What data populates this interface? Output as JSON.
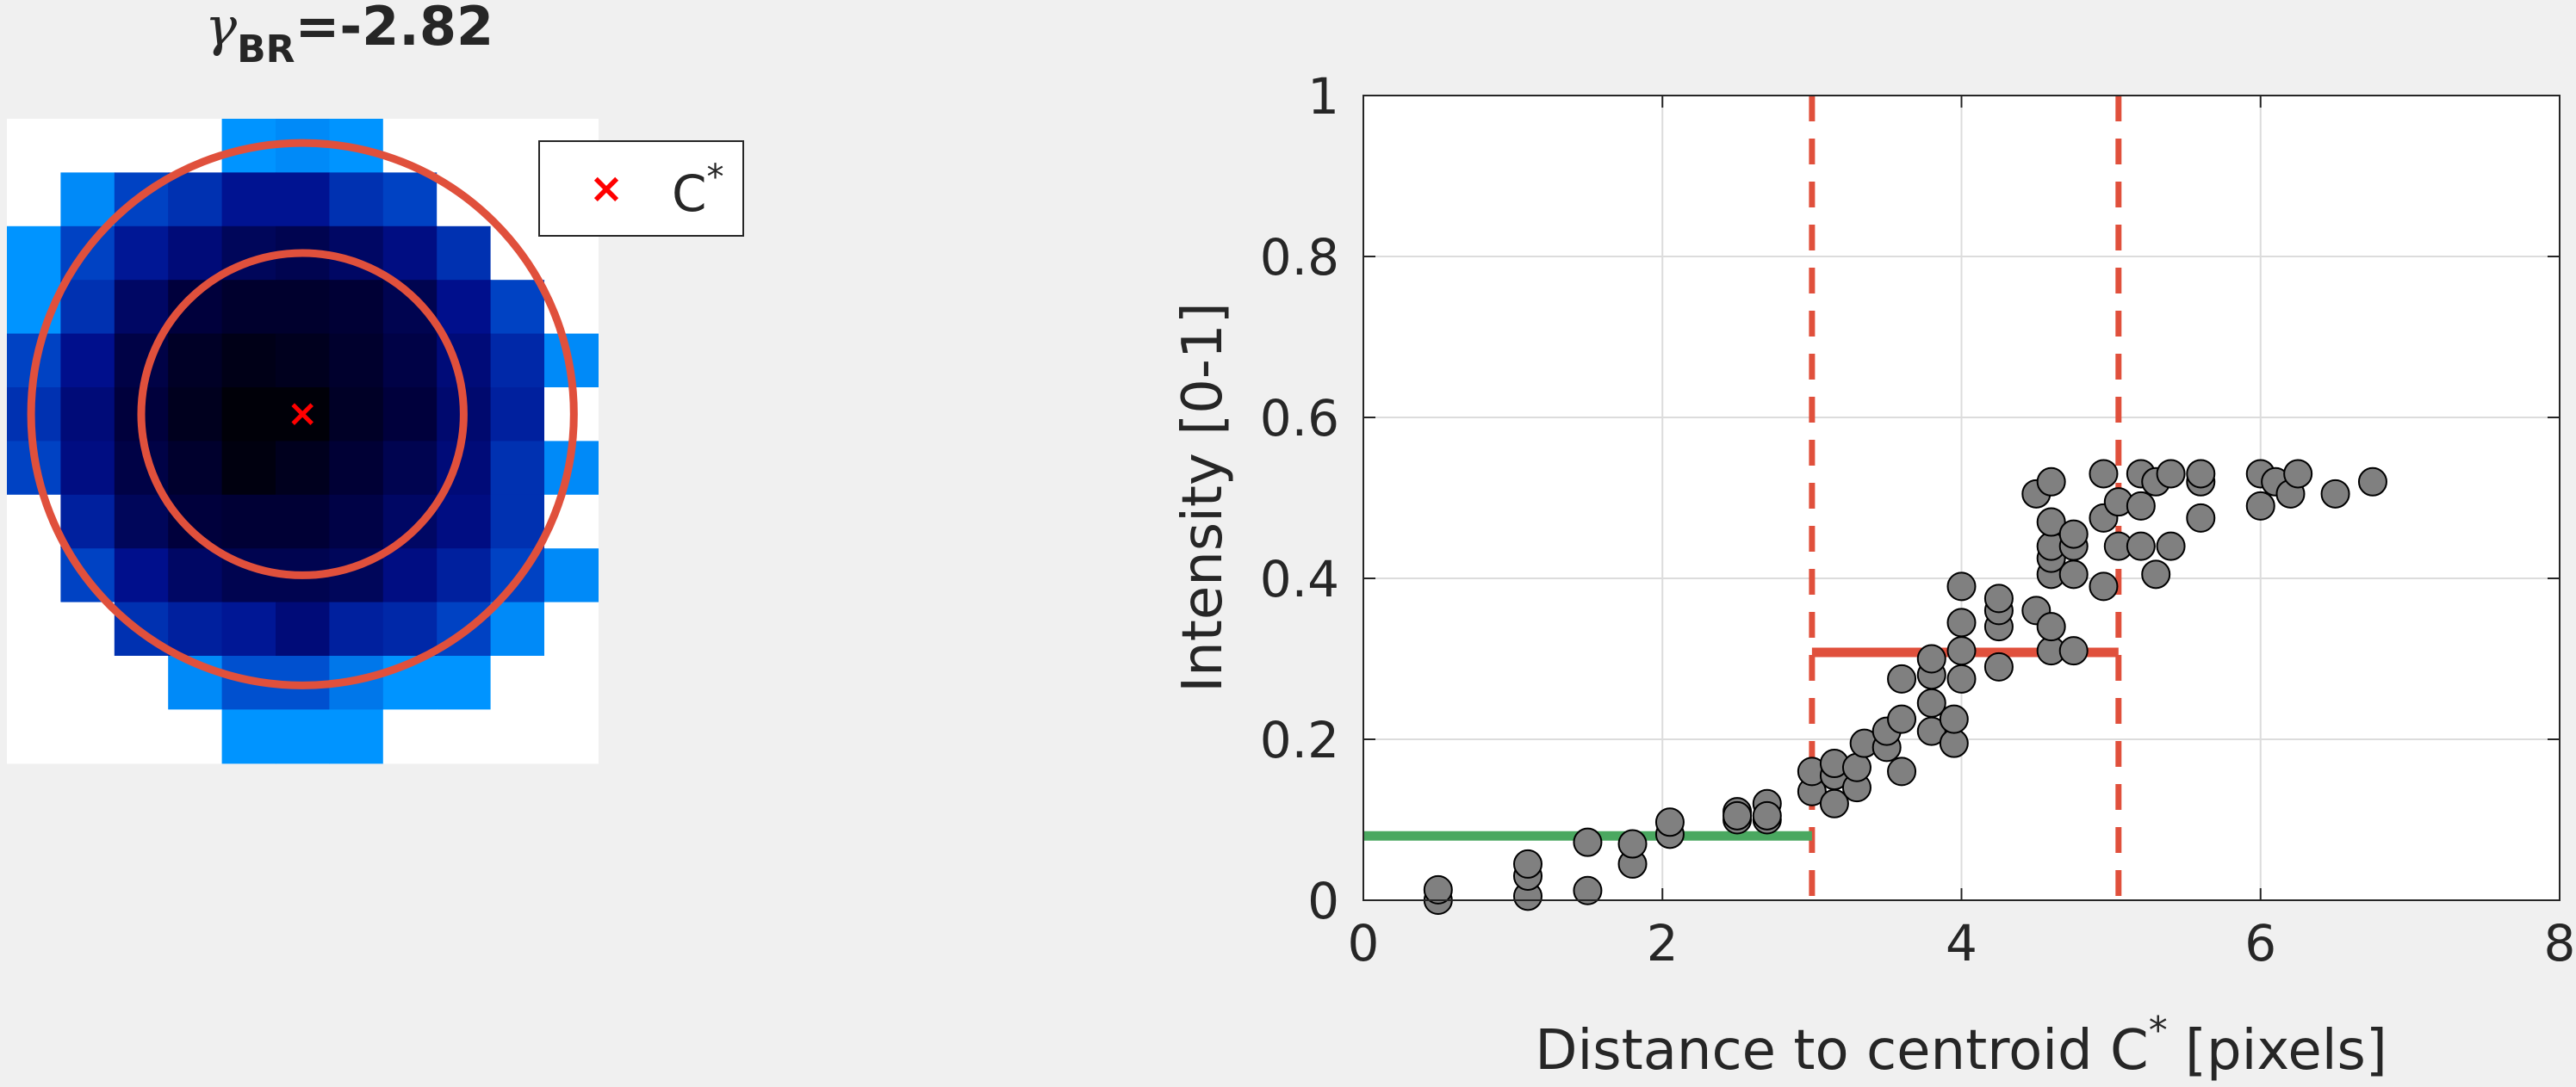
{
  "chart_data": [
    {
      "type": "heatmap",
      "title_symbol": "γ",
      "title_subscript": "BR",
      "title_value": "=-2.82",
      "legend": {
        "marker": "×",
        "label": "C",
        "label_sup": "*"
      },
      "grid_size": [
        11,
        12
      ],
      "centroid": [
        5,
        5
      ],
      "circle_radii": [
        3,
        5.05
      ],
      "colors": {
        "circle": "#e0503c",
        "centroid": "#ff0000",
        "empty": "#ffffff"
      },
      "intensity": [
        [
          null,
          null,
          null,
          null,
          0.53,
          0.52,
          0.53,
          null,
          null,
          null,
          null
        ],
        [
          null,
          0.52,
          0.44,
          0.4,
          0.33,
          0.33,
          0.4,
          0.44,
          null,
          null,
          null
        ],
        [
          0.53,
          0.44,
          0.34,
          0.28,
          0.22,
          0.2,
          0.24,
          0.3,
          0.4,
          null,
          null
        ],
        [
          0.53,
          0.4,
          0.24,
          0.16,
          0.12,
          0.12,
          0.14,
          0.2,
          0.32,
          0.44,
          null
        ],
        [
          0.44,
          0.32,
          0.18,
          0.1,
          0.06,
          0.08,
          0.12,
          0.18,
          0.28,
          0.38,
          0.52
        ],
        [
          0.4,
          0.28,
          0.16,
          0.08,
          0.02,
          0.02,
          0.1,
          0.16,
          0.26,
          0.36,
          null
        ],
        [
          0.44,
          0.3,
          0.18,
          0.12,
          0.04,
          0.08,
          0.14,
          0.2,
          0.28,
          0.4,
          0.52
        ],
        [
          null,
          0.36,
          0.22,
          0.16,
          0.14,
          0.14,
          0.18,
          0.24,
          0.3,
          0.4,
          null
        ],
        [
          null,
          0.44,
          0.32,
          0.24,
          0.2,
          0.2,
          0.22,
          0.3,
          0.36,
          0.44,
          0.52
        ],
        [
          null,
          null,
          0.4,
          0.36,
          0.34,
          0.28,
          0.36,
          0.38,
          0.44,
          0.52,
          null
        ],
        [
          null,
          null,
          null,
          0.52,
          0.46,
          0.46,
          0.5,
          0.53,
          0.53,
          null,
          null
        ],
        [
          null,
          null,
          null,
          null,
          0.53,
          0.53,
          0.53,
          null,
          null,
          null,
          null
        ]
      ]
    },
    {
      "type": "scatter",
      "xlabel": "Distance to centroid C",
      "xlabel_sup": "*",
      "xlabel_suffix": " [pixels]",
      "ylabel": "Intensity [0-1]",
      "xlim": [
        0,
        8
      ],
      "ylim": [
        0,
        1
      ],
      "xticks": [
        0,
        2,
        4,
        6,
        8
      ],
      "yticks": [
        0,
        0.2,
        0.4,
        0.6,
        0.8,
        1
      ],
      "ytick_labels": [
        "0",
        "0.2",
        "0.4",
        "0.6",
        "0.8",
        "1"
      ],
      "grid": true,
      "marker_color": "#808080",
      "points": [
        [
          0.5,
          0.0
        ],
        [
          0.5,
          0.013
        ],
        [
          1.1,
          0.005
        ],
        [
          1.1,
          0.03
        ],
        [
          1.1,
          0.045
        ],
        [
          1.5,
          0.012
        ],
        [
          1.5,
          0.072
        ],
        [
          1.8,
          0.045
        ],
        [
          1.8,
          0.07
        ],
        [
          2.05,
          0.082
        ],
        [
          2.05,
          0.097
        ],
        [
          2.5,
          0.1
        ],
        [
          2.5,
          0.11
        ],
        [
          2.5,
          0.105
        ],
        [
          2.7,
          0.1
        ],
        [
          2.7,
          0.12
        ],
        [
          2.7,
          0.105
        ],
        [
          3.0,
          0.135
        ],
        [
          3.0,
          0.16
        ],
        [
          3.15,
          0.12
        ],
        [
          3.15,
          0.155
        ],
        [
          3.15,
          0.17
        ],
        [
          3.3,
          0.14
        ],
        [
          3.3,
          0.165
        ],
        [
          3.35,
          0.195
        ],
        [
          3.5,
          0.19
        ],
        [
          3.5,
          0.21
        ],
        [
          3.6,
          0.16
        ],
        [
          3.6,
          0.225
        ],
        [
          3.6,
          0.275
        ],
        [
          3.8,
          0.21
        ],
        [
          3.8,
          0.245
        ],
        [
          3.8,
          0.28
        ],
        [
          3.8,
          0.3
        ],
        [
          3.95,
          0.195
        ],
        [
          3.95,
          0.225
        ],
        [
          4.0,
          0.275
        ],
        [
          4.0,
          0.31
        ],
        [
          4.0,
          0.345
        ],
        [
          4.0,
          0.39
        ],
        [
          4.25,
          0.29
        ],
        [
          4.25,
          0.34
        ],
        [
          4.25,
          0.36
        ],
        [
          4.25,
          0.375
        ],
        [
          4.5,
          0.36
        ],
        [
          4.5,
          0.505
        ],
        [
          4.6,
          0.31
        ],
        [
          4.6,
          0.34
        ],
        [
          4.6,
          0.405
        ],
        [
          4.6,
          0.425
        ],
        [
          4.6,
          0.44
        ],
        [
          4.6,
          0.47
        ],
        [
          4.6,
          0.52
        ],
        [
          4.75,
          0.31
        ],
        [
          4.75,
          0.405
        ],
        [
          4.75,
          0.44
        ],
        [
          4.75,
          0.455
        ],
        [
          4.95,
          0.39
        ],
        [
          4.95,
          0.475
        ],
        [
          4.95,
          0.53
        ],
        [
          5.05,
          0.44
        ],
        [
          5.05,
          0.495
        ],
        [
          5.2,
          0.44
        ],
        [
          5.2,
          0.49
        ],
        [
          5.2,
          0.53
        ],
        [
          5.3,
          0.405
        ],
        [
          5.3,
          0.52
        ],
        [
          5.4,
          0.44
        ],
        [
          5.4,
          0.53
        ],
        [
          5.6,
          0.475
        ],
        [
          5.6,
          0.52
        ],
        [
          5.6,
          0.53
        ],
        [
          6.0,
          0.49
        ],
        [
          6.0,
          0.53
        ],
        [
          6.1,
          0.52
        ],
        [
          6.2,
          0.505
        ],
        [
          6.25,
          0.53
        ],
        [
          6.5,
          0.505
        ],
        [
          6.75,
          0.52
        ]
      ],
      "vlines": [
        3,
        5.05
      ],
      "segments": [
        {
          "x0": 0,
          "x1": 3,
          "y": 0.08,
          "color": "#4aa860"
        },
        {
          "x0": 3,
          "x1": 5.05,
          "y": 0.308,
          "color": "#e0503c"
        }
      ]
    }
  ]
}
